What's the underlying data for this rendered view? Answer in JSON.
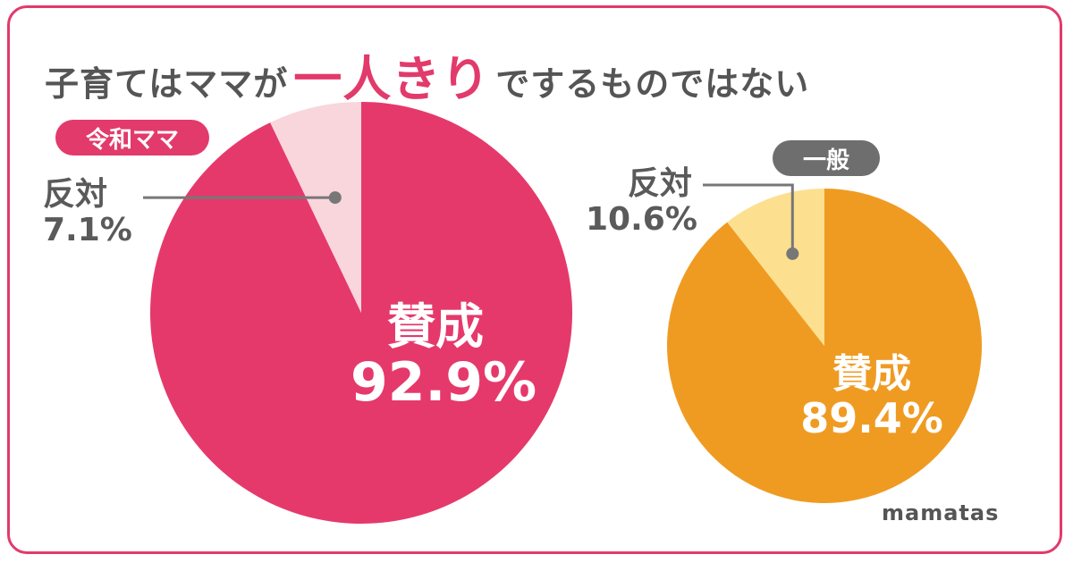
{
  "title": {
    "prefix": "子育てはママが",
    "highlight": "一人きり",
    "suffix": "でするものではない"
  },
  "brand": "mamatas",
  "colors": {
    "border": "#e23a6b",
    "reiwa_main": "#e5396c",
    "reiwa_light": "#f9d5dc",
    "general_main": "#ef9b22",
    "general_light": "#fce08f",
    "text_gray": "#5a5a5a"
  },
  "chart_data": [
    {
      "type": "pie",
      "title": "令和ママ",
      "slices": [
        {
          "label": "賛成",
          "value": 92.9,
          "value_label": "92.9%"
        },
        {
          "label": "反対",
          "value": 7.1,
          "value_label": "7.1%"
        }
      ]
    },
    {
      "type": "pie",
      "title": "一般",
      "slices": [
        {
          "label": "賛成",
          "value": 89.4,
          "value_label": "89.4%"
        },
        {
          "label": "反対",
          "value": 10.6,
          "value_label": "10.6%"
        }
      ]
    }
  ]
}
